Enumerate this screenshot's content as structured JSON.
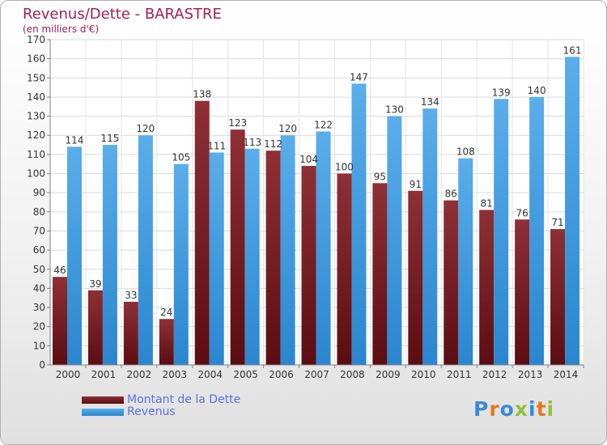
{
  "chart_data": {
    "type": "bar",
    "title": "Revenus/Dette - BARASTRE",
    "subtitle": "(en milliers d'€)",
    "categories": [
      "2000",
      "2001",
      "2002",
      "2003",
      "2004",
      "2005",
      "2006",
      "2007",
      "2008",
      "2009",
      "2010",
      "2011",
      "2012",
      "2013",
      "2014"
    ],
    "series": [
      {
        "name": "Montant de la Dette",
        "color": "#7a1f24",
        "values": [
          46,
          39,
          33,
          24,
          138,
          123,
          112,
          104,
          100,
          95,
          91,
          86,
          81,
          76,
          71
        ]
      },
      {
        "name": "Revenus",
        "color": "#3a9ae0",
        "values": [
          114,
          115,
          120,
          105,
          111,
          113,
          120,
          122,
          147,
          130,
          134,
          108,
          139,
          140,
          161
        ]
      }
    ],
    "ylim": [
      0,
      170
    ],
    "ytick_step": 10,
    "grid": true,
    "legend_position": "bottom-left",
    "data_labels": true
  },
  "brand": {
    "logo_text": "Proxiti"
  }
}
